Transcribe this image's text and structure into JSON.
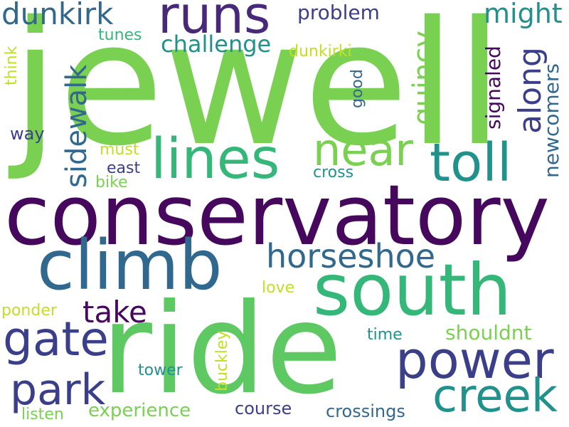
{
  "words": {
    "jewell": "jewell",
    "conservatory": "conservatory",
    "ride": "ride",
    "south": "south",
    "climb": "climb",
    "runs": "runs",
    "lines": "lines",
    "toll": "toll",
    "near": "near",
    "power": "power",
    "creek": "creek",
    "gate": "gate",
    "park": "park",
    "horseshoe": "horseshoe",
    "sidewalk": "sidewalk",
    "dunkirk": "dunkirk",
    "quincy": "quincy",
    "along": "along",
    "might": "might",
    "take": "take",
    "problem": "problem",
    "challenge": "challenge",
    "newcomers": "newcomers",
    "signaled": "signaled",
    "shouldnt": "shouldnt",
    "experience": "experience",
    "crossings": "crossings",
    "course": "course",
    "tower": "tower",
    "buckley": "buckley",
    "dunkirki": "dunkirki",
    "tunes": "tunes",
    "think": "think",
    "way": "way",
    "must": "must",
    "east": "east",
    "bike": "bike",
    "good": "good",
    "cross": "cross",
    "love": "love",
    "ponder": "ponder",
    "time": "time",
    "listen": "listen"
  },
  "palette": {
    "dark_purple": "#46085c",
    "indigo": "#3b3f8a",
    "steel_blue": "#31688e",
    "teal": "#21918c",
    "green": "#35b779",
    "light_green": "#7ad151",
    "lime": "#c2df23",
    "background": "#ffffff"
  }
}
